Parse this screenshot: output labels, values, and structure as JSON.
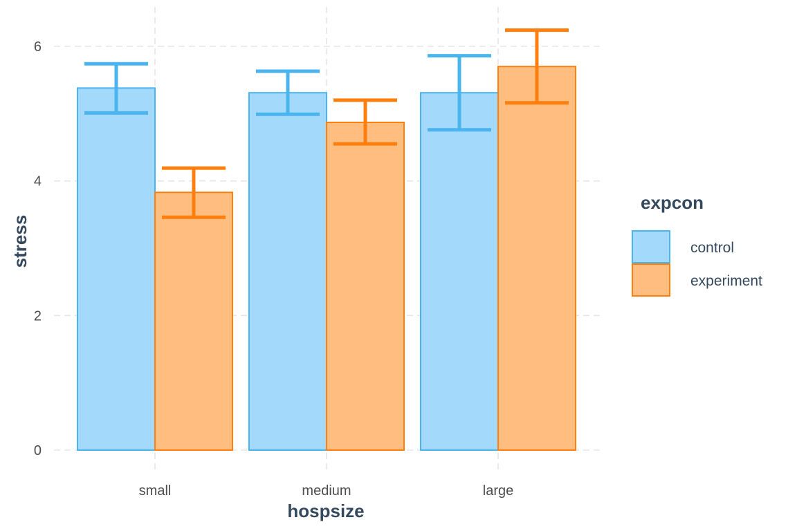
{
  "chart_data": {
    "type": "bar",
    "title": "",
    "xlabel": "hospsize",
    "ylabel": "stress",
    "categories": [
      "small",
      "medium",
      "large"
    ],
    "ylim": [
      0,
      6.4
    ],
    "yticks": [
      0,
      2,
      4,
      6
    ],
    "grid": true,
    "grid_style": "dashed",
    "legend_placement": "right",
    "legend_title": "expcon",
    "series": [
      {
        "name": "control",
        "values": [
          5.38,
          5.31,
          5.31
        ],
        "error_low": [
          5.01,
          4.99,
          4.76
        ],
        "error_high": [
          5.74,
          5.63,
          5.86
        ],
        "fill_color": "#a3d9fb",
        "line_color": "#4ab4ef"
      },
      {
        "name": "experiment",
        "values": [
          3.83,
          4.87,
          5.7
        ],
        "error_low": [
          3.46,
          4.55,
          5.16
        ],
        "error_high": [
          4.19,
          5.2,
          6.24
        ],
        "fill_color": "#ffbd80",
        "line_color": "#ff7f0e"
      }
    ]
  }
}
